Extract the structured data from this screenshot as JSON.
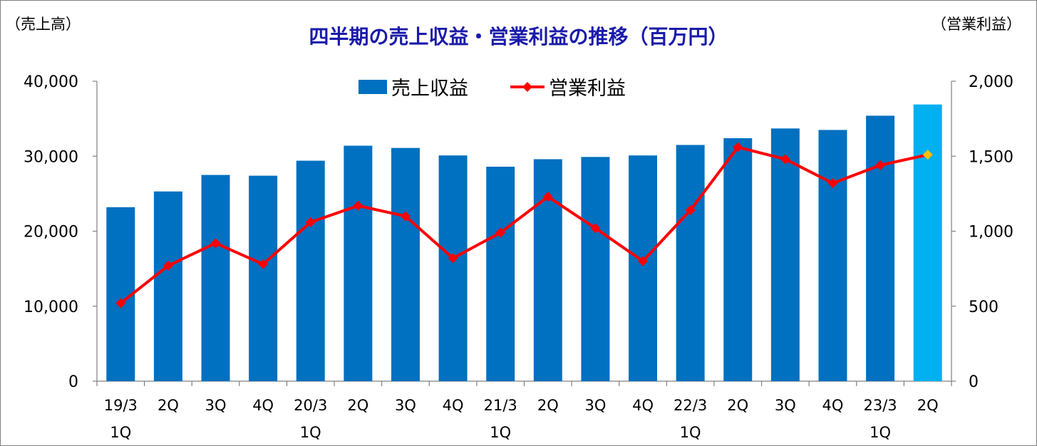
{
  "chart_data": {
    "type": "bar",
    "title": "四半期の売上収益・営業利益の推移（百万円）",
    "left_axis_unit": "（売上高）",
    "right_axis_unit": "（営業利益）",
    "categories": [
      [
        "19/3",
        "1Q"
      ],
      [
        "2Q",
        ""
      ],
      [
        "3Q",
        ""
      ],
      [
        "4Q",
        ""
      ],
      [
        "20/3",
        "1Q"
      ],
      [
        "2Q",
        ""
      ],
      [
        "3Q",
        ""
      ],
      [
        "4Q",
        ""
      ],
      [
        "21/3",
        "1Q"
      ],
      [
        "2Q",
        ""
      ],
      [
        "3Q",
        ""
      ],
      [
        "4Q",
        ""
      ],
      [
        "22/3",
        "1Q"
      ],
      [
        "2Q",
        ""
      ],
      [
        "3Q",
        ""
      ],
      [
        "4Q",
        ""
      ],
      [
        "23/3",
        "1Q"
      ],
      [
        "2Q",
        ""
      ]
    ],
    "series": [
      {
        "name": "売上収益",
        "type": "bar",
        "axis": "left",
        "color": "#0070c0",
        "highlight_color": "#00b0f0",
        "highlight_index": 17,
        "values": [
          23200,
          25300,
          27500,
          27400,
          29400,
          31400,
          31100,
          30100,
          28600,
          29600,
          29900,
          30100,
          31500,
          32400,
          33700,
          33500,
          35400,
          36900
        ]
      },
      {
        "name": "営業利益",
        "type": "line",
        "axis": "right",
        "color": "#ff0000",
        "highlight_color": "#ffc000",
        "highlight_index": 17,
        "values": [
          520,
          770,
          920,
          780,
          1060,
          1170,
          1100,
          820,
          990,
          1230,
          1020,
          800,
          1140,
          1560,
          1480,
          1320,
          1440,
          1510
        ]
      }
    ],
    "ylim_left": [
      0,
      40000
    ],
    "ylim_right": [
      0,
      2000
    ],
    "yticks_left": [
      "0",
      "10,000",
      "20,000",
      "30,000",
      "40,000"
    ],
    "yticks_right": [
      "0",
      "500",
      "1,000",
      "1,500",
      "2,000"
    ],
    "legend_position": "top-center",
    "grid": false
  }
}
